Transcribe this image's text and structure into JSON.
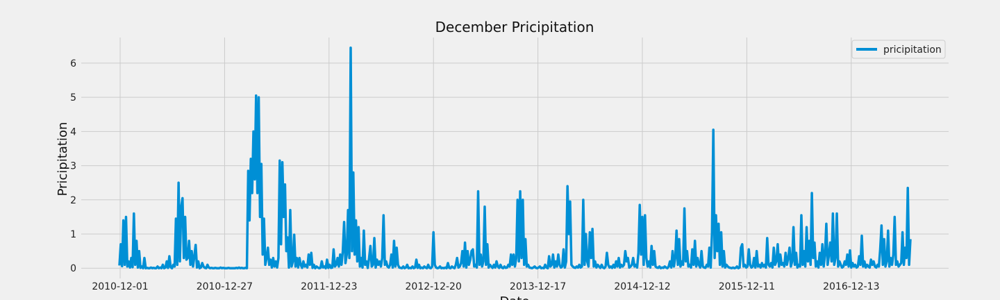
{
  "chart_data": {
    "type": "line",
    "title": "December Pricipitation",
    "xlabel": "Date",
    "ylabel": "Pricipitation",
    "ylim": [
      -0.3,
      6.75
    ],
    "yticks": [
      0,
      1,
      2,
      3,
      4,
      5,
      6
    ],
    "xticks": [
      "2010-12-01",
      "2010-12-27",
      "2011-12-23",
      "2012-12-20",
      "2013-12-17",
      "2014-12-12",
      "2015-12-11",
      "2016-12-13"
    ],
    "grid": true,
    "legend": "top-right",
    "colors": {
      "line": "#008fd5",
      "grid": "#cbcbcb",
      "background": "#f0f0f0"
    },
    "series": [
      {
        "name": "pricipitation",
        "values": [
          0.08,
          0.7,
          0.06,
          1.4,
          0.1,
          1.5,
          0.05,
          0.2,
          0.02,
          0.3,
          0.03,
          1.6,
          0.1,
          0.8,
          0.02,
          0.5,
          0.01,
          0.05,
          0,
          0.3,
          0,
          0.01,
          0,
          0,
          0.02,
          0,
          0.01,
          0,
          0,
          0.05,
          0,
          0.02,
          0,
          0.1,
          0,
          0.02,
          0.2,
          0.01,
          0.35,
          0.03,
          0,
          0.1,
          0.05,
          1.45,
          0.1,
          2.5,
          0.2,
          1.8,
          2.05,
          0.3,
          1.5,
          0.25,
          0.3,
          0.8,
          0.1,
          0.5,
          0.05,
          0.35,
          0.68,
          0.02,
          0.2,
          0,
          0.02,
          0.15,
          0.05,
          0.01,
          0,
          0.1,
          0.02,
          0,
          0.01,
          0,
          0,
          0.01,
          0,
          0,
          0,
          0.02,
          0,
          0.01,
          0,
          0,
          0,
          0.01,
          0,
          0,
          0,
          0,
          0,
          0.01,
          0,
          0.02,
          0,
          0.01,
          0,
          0,
          0.01,
          0,
          2.85,
          1.4,
          3.2,
          2.2,
          4.0,
          2.6,
          5.05,
          2.2,
          5.0,
          1.5,
          3.05,
          0.4,
          1.45,
          0.1,
          0.3,
          0.6,
          0.1,
          0.25,
          0.02,
          0.3,
          0.05,
          0.2,
          0.02,
          0.3,
          3.15,
          0.7,
          3.1,
          1.5,
          2.45,
          0.5,
          0.9,
          0.02,
          1.7,
          0.05,
          0.2,
          0.98,
          0.05,
          0.3,
          0.02,
          0.3,
          0.1,
          0.01,
          0.2,
          0.05,
          0.1,
          0.02,
          0.4,
          0.1,
          0.45,
          0.01,
          0.1,
          0,
          0.05,
          0.02,
          0,
          0.01,
          0.2,
          0.02,
          0.05,
          0,
          0.25,
          0.01,
          0.1,
          0.01,
          0.02,
          0.55,
          0.05,
          0.1,
          0.3,
          0.05,
          0.4,
          0.1,
          0.5,
          1.35,
          0.15,
          0.4,
          1.7,
          0.3,
          6.45,
          0.5,
          2.8,
          0.4,
          1.4,
          0.2,
          1.2,
          0.05,
          0.3,
          0.02,
          1.1,
          0.1,
          0.2,
          0.01,
          0.3,
          0.65,
          0.05,
          0.1,
          0.88,
          0.02,
          0.25,
          0.1,
          0.2,
          0.05,
          0.3,
          1.55,
          0.1,
          0.2,
          0.05,
          0.02,
          0.1,
          0.4,
          0.02,
          0.8,
          0.05,
          0.6,
          0.1,
          0.02,
          0.01,
          0,
          0.05,
          0,
          0.02,
          0.1,
          0,
          0.01,
          0,
          0.05,
          0,
          0.02,
          0.25,
          0.01,
          0.1,
          0,
          0.02,
          0,
          0.05,
          0.02,
          0,
          0.1,
          0.01,
          0,
          0.05,
          1.05,
          0.1,
          0.02,
          0,
          0.01,
          0.05,
          0,
          0.01,
          0,
          0.02,
          0,
          0.15,
          0.01,
          0,
          0.05,
          0.02,
          0,
          0.1,
          0.3,
          0.02,
          0.05,
          0.15,
          0.5,
          0.05,
          0.75,
          0.02,
          0.5,
          0.1,
          0.25,
          0.5,
          0.55,
          0.05,
          0.1,
          0.02,
          2.25,
          0.1,
          0.4,
          0.05,
          0.2,
          1.8,
          0.1,
          0.7,
          0.02,
          0.1,
          0.05,
          0.01,
          0.1,
          0.02,
          0.2,
          0.05,
          0.01,
          0.1,
          0.02,
          0,
          0.05,
          0.01,
          0.02,
          0.1,
          0.05,
          0.4,
          0.1,
          0.4,
          0.05,
          0.3,
          2.0,
          0.2,
          2.25,
          0.3,
          2.0,
          0.1,
          0.85,
          0.05,
          0.1,
          0.02,
          0.01,
          0,
          0.02,
          0.05,
          0.01,
          0,
          0.02,
          0.05,
          0,
          0.01,
          0,
          0.1,
          0.02,
          0,
          0.35,
          0.05,
          0.1,
          0.4,
          0.02,
          0.2,
          0.05,
          0.4,
          0.1,
          0.02,
          0.05,
          0.55,
          0.02,
          0.2,
          2.4,
          1.0,
          1.95,
          0.1,
          0.05,
          0.02,
          0.01,
          0.05,
          0.02,
          0.1,
          0.02,
          0.05,
          2.0,
          0.1,
          1.0,
          0.2,
          0.05,
          1.05,
          0.3,
          1.15,
          0.05,
          0.2,
          0.02,
          0.1,
          0.05,
          0.01,
          0.1,
          0.02,
          0,
          0.05,
          0.45,
          0.1,
          0.02,
          0.05,
          0.01,
          0.1,
          0.02,
          0.2,
          0.05,
          0.3,
          0.02,
          0.1,
          0.05,
          0.1,
          0.5,
          0.2,
          0.3,
          0.02,
          0.05,
          0.1,
          0.3,
          0.05,
          0.1,
          0.02,
          0.45,
          1.85,
          0.4,
          1.5,
          0.1,
          1.55,
          0.3,
          0.05,
          0.2,
          0.02,
          0.65,
          0.1,
          0.5,
          0.05,
          0.02,
          0.01,
          0.05,
          0,
          0.02,
          0.01,
          0.05,
          0.02,
          0,
          0.05,
          0.2,
          0.02,
          0.5,
          0.05,
          0.3,
          1.1,
          0.1,
          0.85,
          0.05,
          0.2,
          0.1,
          1.75,
          0.2,
          0.5,
          0.05,
          0.1,
          0.02,
          0.55,
          0.1,
          0.8,
          0.05,
          0.3,
          0.1,
          0.02,
          0.5,
          0.05,
          0.02,
          0.01,
          0.1,
          0.05,
          0.6,
          0.02,
          1.05,
          4.05,
          0.3,
          1.55,
          0.5,
          1.3,
          0.1,
          1.05,
          0.05,
          0.5,
          0.02,
          0.1,
          0.05,
          0.02,
          0.01,
          0,
          0.02,
          0,
          0.01,
          0.05,
          0,
          0.02,
          0.6,
          0.7,
          0.05,
          0.1,
          0.02,
          0.05,
          0.55,
          0.1,
          0.02,
          0.05,
          0.3,
          0.02,
          0.5,
          0.05,
          0.1,
          0.02,
          0.15,
          0.05,
          0.1,
          0.02,
          0.88,
          0.1,
          0.05,
          0.15,
          0.02,
          0.6,
          0.1,
          0.2,
          0.7,
          0.05,
          0.4,
          0.1,
          0.15,
          0.05,
          0.45,
          0.1,
          0.3,
          0.6,
          0.05,
          0.2,
          1.2,
          0.1,
          0.45,
          0.02,
          0.1,
          0.05,
          1.55,
          0.1,
          0.5,
          0.05,
          1.2,
          0.2,
          0.8,
          0.1,
          2.2,
          0.3,
          0.75,
          0.05,
          0.2,
          0.02,
          0.45,
          0.1,
          0.7,
          0.05,
          0.4,
          1.3,
          0.1,
          0.4,
          0.75,
          0.2,
          1.6,
          0.1,
          0.3,
          1.6,
          0.05,
          0.2,
          0.1,
          0.02,
          0.05,
          0.2,
          0.1,
          0.4,
          0.05,
          0.52,
          0.02,
          0.15,
          0.05,
          0.1,
          0.02,
          0.05,
          0.35,
          0.1,
          0.95,
          0.05,
          0.2,
          0.02,
          0.1,
          0.05,
          0.02,
          0.25,
          0.1,
          0.2,
          0.05,
          0.02,
          0.1,
          0.05,
          0.55,
          1.25,
          0.1,
          0.85,
          0.05,
          0.2,
          1.1,
          0.05,
          0.3,
          0.1,
          0.4,
          1.5,
          0.1,
          0.2,
          0.05,
          0.1,
          0.15,
          1.05,
          0.1,
          0.6,
          0.3,
          2.35,
          0.1,
          0.85
        ]
      }
    ]
  }
}
